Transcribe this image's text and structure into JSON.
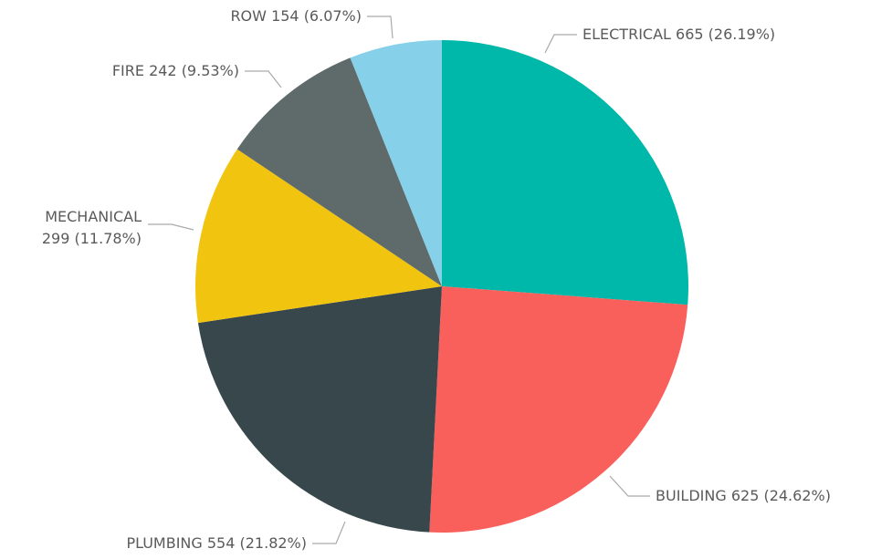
{
  "chart_data": {
    "type": "pie",
    "categories": [
      "ELECTRICAL",
      "BUILDING",
      "PLUMBING",
      "MECHANICAL",
      "FIRE",
      "ROW"
    ],
    "values": [
      665,
      625,
      554,
      299,
      242,
      154
    ],
    "value_labels": [
      "665 (26.19%)",
      "625 (24.62%)",
      "554 (21.82%)",
      "299 (11.78%)",
      "242 (9.53%)",
      "154 (6.07%)"
    ],
    "colors": [
      "#00b8a9",
      "#f95f5b",
      "#37474b",
      "#f1c40f",
      "#5f6b6b",
      "#87d0ea"
    ]
  }
}
